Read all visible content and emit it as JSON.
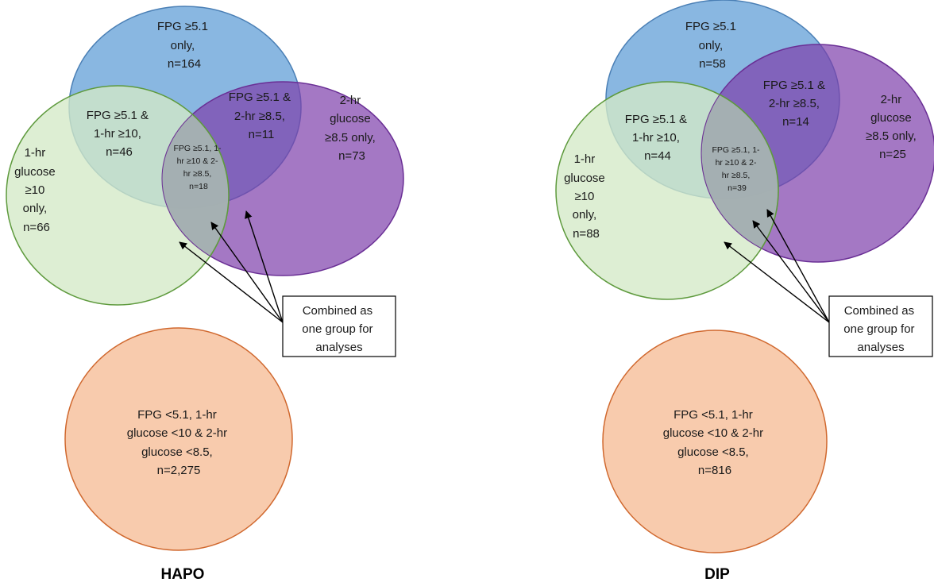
{
  "colors": {
    "fpg_fill": "#5b9bd5",
    "fpg_stroke": "#4a7fb5",
    "two_hr_fill": "#7e3fab",
    "two_hr_stroke": "#6a2f95",
    "one_hr_fill": "#d4e9c6",
    "one_hr_stroke": "#5e9a3d",
    "normal_fill": "#f8cbad",
    "normal_stroke": "#d0682e",
    "triple_fill": "#a2adb0",
    "arrow": "#000000"
  },
  "panels": [
    {
      "id": "hapo",
      "title": "HAPO",
      "fpg_only": [
        "FPG ≥5.1",
        "only,",
        "n=164"
      ],
      "fpg_two_hr": [
        "FPG ≥5.1 &",
        "2-hr ≥8.5,",
        "n=11"
      ],
      "two_hr_only": [
        "2-hr",
        "glucose",
        "≥8.5 only,",
        "n=73"
      ],
      "fpg_one_hr": [
        "FPG ≥5.1 &",
        "1-hr ≥10,",
        "n=46"
      ],
      "triple": [
        "FPG ≥5.1, 1-",
        "hr ≥10 & 2-",
        "hr ≥8.5,",
        "n=18"
      ],
      "one_hr_only": [
        "1-hr",
        "glucose",
        "≥10",
        "only,",
        "n=66"
      ],
      "combined_note": [
        "Combined as",
        "one group for",
        "analyses"
      ],
      "normal": [
        "FPG <5.1, 1-hr",
        "glucose <10 & 2-hr",
        "glucose <8.5,",
        "n=2,275"
      ]
    },
    {
      "id": "dip",
      "title": "DIP",
      "fpg_only": [
        "FPG ≥5.1",
        "only,",
        "n=58"
      ],
      "fpg_two_hr": [
        "FPG ≥5.1 &",
        "2-hr ≥8.5,",
        "n=14"
      ],
      "two_hr_only": [
        "2-hr",
        "glucose",
        "≥8.5 only,",
        "n=25"
      ],
      "fpg_one_hr": [
        "FPG ≥5.1 &",
        "1-hr ≥10,",
        "n=44"
      ],
      "triple": [
        "FPG ≥5.1, 1-",
        "hr ≥10 & 2-",
        "hr ≥8.5,",
        "n=39"
      ],
      "one_hr_only": [
        "1-hr",
        "glucose",
        "≥10",
        "only,",
        "n=88"
      ],
      "combined_note": [
        "Combined as",
        "one group for",
        "analyses"
      ],
      "normal": [
        "FPG <5.1, 1-hr",
        "glucose <10 & 2-hr",
        "glucose <8.5,",
        "n=816"
      ]
    }
  ]
}
